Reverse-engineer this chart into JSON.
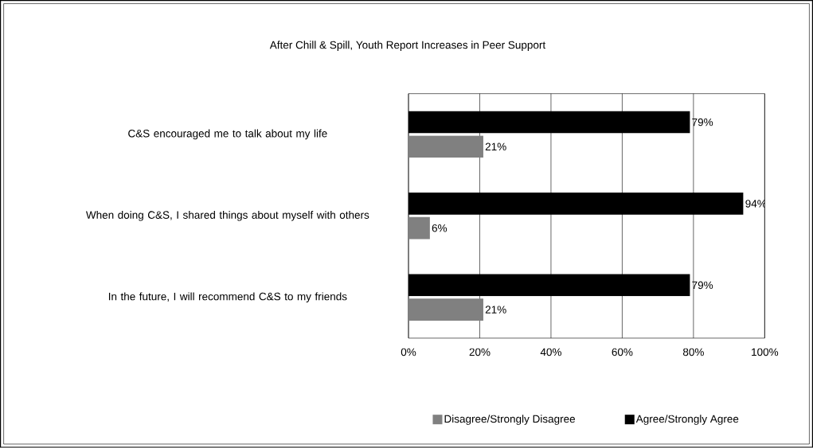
{
  "chart_data": {
    "type": "bar",
    "orientation": "horizontal",
    "title": "After Chill & Spill, Youth Report Increases in Peer Support",
    "categories": [
      "C&S encouraged me to talk about my life",
      "When doing C&S, I shared things about myself with others",
      "In the future, I will recommend C&S to my friends"
    ],
    "series": [
      {
        "name": "Disagree/Strongly Disagree",
        "color": "#808080",
        "values": [
          21,
          6,
          21
        ],
        "value_labels": [
          "21%",
          "6%",
          "21%"
        ]
      },
      {
        "name": "Agree/Strongly Agree",
        "color": "#000000",
        "values": [
          79,
          94,
          79
        ],
        "value_labels": [
          "79%",
          "94%",
          "79%"
        ]
      }
    ],
    "xlim": [
      0,
      100
    ],
    "xticks": [
      {
        "value": 0,
        "label": "0%"
      },
      {
        "value": 20,
        "label": "20%"
      },
      {
        "value": 40,
        "label": "40%"
      },
      {
        "value": 60,
        "label": "60%"
      },
      {
        "value": 80,
        "label": "80%"
      },
      {
        "value": 100,
        "label": "100%"
      }
    ],
    "grid": "x",
    "legend": "bottom"
  }
}
